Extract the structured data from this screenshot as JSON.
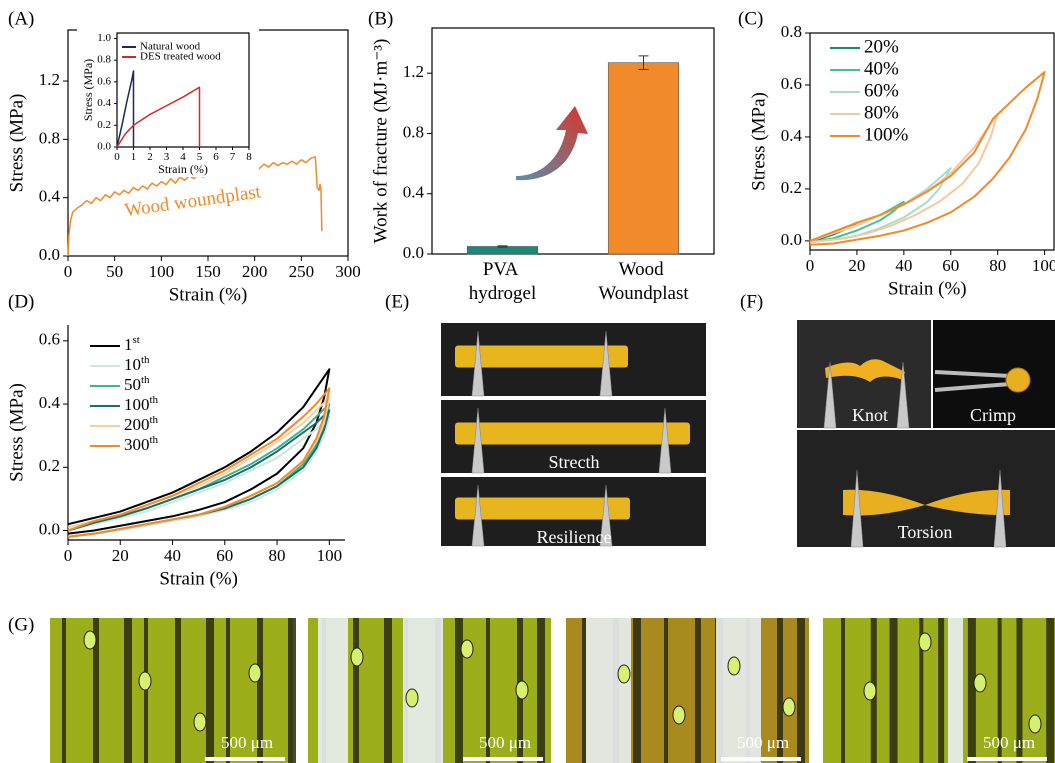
{
  "chart_data": [
    {
      "type": "line",
      "panel_label": "(A)",
      "x_label": "Strain (%)",
      "y_label": "Stress (MPa)",
      "annotation": "Wood woundplast",
      "color": "#f08a2a",
      "x": [
        0,
        1,
        3,
        5,
        10,
        15,
        20,
        25,
        30,
        35,
        40,
        45,
        50,
        55,
        60,
        65,
        70,
        75,
        80,
        85,
        90,
        95,
        100,
        105,
        110,
        115,
        120,
        125,
        130,
        135,
        140,
        145,
        150,
        155,
        160,
        165,
        170,
        175,
        180,
        185,
        190,
        195,
        200,
        205,
        210,
        215,
        220,
        225,
        230,
        235,
        240,
        245,
        250,
        255,
        260,
        265,
        267,
        269,
        270,
        271,
        272
      ],
      "values": [
        0,
        0.15,
        0.25,
        0.3,
        0.33,
        0.35,
        0.38,
        0.36,
        0.4,
        0.38,
        0.42,
        0.4,
        0.44,
        0.42,
        0.45,
        0.43,
        0.47,
        0.45,
        0.48,
        0.46,
        0.5,
        0.48,
        0.51,
        0.49,
        0.53,
        0.5,
        0.54,
        0.52,
        0.55,
        0.53,
        0.57,
        0.54,
        0.58,
        0.56,
        0.58,
        0.56,
        0.59,
        0.57,
        0.6,
        0.58,
        0.61,
        0.59,
        0.62,
        0.6,
        0.63,
        0.61,
        0.64,
        0.62,
        0.64,
        0.63,
        0.65,
        0.63,
        0.66,
        0.64,
        0.67,
        0.68,
        0.47,
        0.45,
        0.49,
        0.46,
        0.17
      ],
      "xlim": [
        0,
        300
      ],
      "ylim": [
        0,
        1.55
      ],
      "xticks": [
        0,
        50,
        100,
        150,
        200,
        250,
        300
      ],
      "yticks": [
        {
          "value": 0,
          "label": "0.0"
        },
        0.4,
        0.8,
        1.2
      ]
    },
    {
      "type": "line",
      "x_label": "Strain (%)",
      "y_label": "Stress (MPa)",
      "series": [
        {
          "name": "Natural wood",
          "color": "#1c2a5a",
          "x": [
            0,
            0.3,
            0.6,
            0.9,
            1,
            1
          ],
          "values": [
            0,
            0.2,
            0.42,
            0.62,
            0.7,
            0
          ]
        },
        {
          "name": "DES treated wood",
          "color": "#d62728",
          "x": [
            0,
            0.5,
            1,
            2,
            3,
            4,
            5,
            5
          ],
          "values": [
            0,
            0.12,
            0.2,
            0.3,
            0.38,
            0.46,
            0.55,
            0
          ]
        }
      ],
      "xlim": [
        0,
        8
      ],
      "ylim": [
        0,
        1.05
      ],
      "xticks": [
        0,
        1,
        2,
        3,
        4,
        5,
        6,
        7,
        8
      ],
      "yticks": [
        {
          "value": 0,
          "label": "0.0"
        },
        0.2,
        0.4,
        0.6,
        0.8,
        {
          "value": 1,
          "label": "1.0"
        }
      ]
    },
    {
      "type": "bar",
      "panel_label": "(B)",
      "y_label": "Work of fracture (MJ·m⁻³)",
      "categories": [
        "PVA hydrogel",
        "Wood Woundplast"
      ],
      "values": [
        0.05,
        1.27
      ],
      "errors": [
        0.004,
        0.045
      ],
      "colors": [
        "#1a8a7a",
        "#f08a2a"
      ],
      "ylim": [
        0,
        1.5
      ],
      "yticks": [
        {
          "value": 0,
          "label": "0.0"
        },
        0.4,
        0.8,
        1.2
      ]
    },
    {
      "type": "line",
      "panel_label": "(C)",
      "x_label": "Strain (%)",
      "y_label": "Stress (MPa)",
      "series": [
        {
          "name": "20%",
          "color": "#1b8a6b",
          "x": [
            0,
            5,
            10,
            15,
            20,
            15,
            10,
            5,
            0
          ],
          "values": [
            0,
            0.015,
            0.03,
            0.05,
            0.07,
            0.045,
            0.025,
            0.01,
            -0.005
          ]
        },
        {
          "name": "40%",
          "color": "#45c08f",
          "x": [
            0,
            10,
            20,
            30,
            40,
            35,
            30,
            20,
            10,
            0
          ],
          "values": [
            0,
            0.03,
            0.06,
            0.1,
            0.15,
            0.11,
            0.08,
            0.04,
            0.01,
            -0.005
          ]
        },
        {
          "name": "60%",
          "color": "#a8dccc",
          "x": [
            0,
            10,
            20,
            30,
            40,
            50,
            60,
            55,
            50,
            40,
            30,
            20,
            10,
            0
          ],
          "values": [
            0,
            0.03,
            0.06,
            0.1,
            0.14,
            0.2,
            0.28,
            0.2,
            0.15,
            0.09,
            0.05,
            0.02,
            0.005,
            -0.005
          ]
        },
        {
          "name": "80%",
          "color": "#f5c9a0",
          "x": [
            0,
            10,
            20,
            30,
            40,
            50,
            60,
            70,
            80,
            77,
            72,
            65,
            55,
            45,
            35,
            25,
            15,
            5,
            0
          ],
          "values": [
            0,
            0.03,
            0.06,
            0.1,
            0.14,
            0.19,
            0.26,
            0.36,
            0.49,
            0.4,
            0.3,
            0.22,
            0.15,
            0.1,
            0.06,
            0.03,
            0.01,
            0,
            -0.005
          ]
        },
        {
          "name": "100%",
          "color": "#f08a2a",
          "x": [
            0,
            10,
            20,
            30,
            40,
            50,
            60,
            70,
            78,
            85,
            92,
            100,
            97,
            92,
            85,
            78,
            70,
            60,
            50,
            40,
            30,
            20,
            10,
            0
          ],
          "values": [
            0,
            0.035,
            0.07,
            0.1,
            0.14,
            0.19,
            0.25,
            0.34,
            0.47,
            0.53,
            0.59,
            0.65,
            0.55,
            0.43,
            0.32,
            0.24,
            0.17,
            0.11,
            0.07,
            0.04,
            0.02,
            0.005,
            -0.01,
            -0.015
          ]
        }
      ],
      "xlim": [
        0,
        104
      ],
      "ylim": [
        -0.035,
        0.8
      ],
      "xticks": [
        0,
        20,
        40,
        60,
        80,
        100
      ],
      "yticks": [
        {
          "value": 0,
          "label": "0.0"
        },
        0.2,
        0.4,
        0.6,
        0.8
      ]
    },
    {
      "type": "line",
      "panel_label": "(D)",
      "x_label": "Strain (%)",
      "y_label": "Stress (MPa)",
      "series": [
        {
          "name": "1st",
          "color": "#000000",
          "x": [
            0,
            10,
            20,
            30,
            40,
            50,
            60,
            70,
            80,
            90,
            95,
            100,
            98,
            95,
            90,
            80,
            70,
            60,
            50,
            40,
            30,
            20,
            10,
            0
          ],
          "values": [
            0.02,
            0.04,
            0.06,
            0.09,
            0.12,
            0.16,
            0.2,
            0.25,
            0.31,
            0.39,
            0.45,
            0.51,
            0.42,
            0.34,
            0.26,
            0.18,
            0.13,
            0.09,
            0.065,
            0.045,
            0.03,
            0.015,
            0.0,
            -0.01
          ]
        },
        {
          "name": "10th",
          "color": "#c8e8e0",
          "x": [
            0,
            10,
            20,
            30,
            40,
            50,
            60,
            70,
            80,
            90,
            95,
            100,
            98,
            95,
            90,
            80,
            70,
            60,
            50,
            40,
            30,
            20,
            10,
            0
          ],
          "values": [
            0,
            0.02,
            0.04,
            0.06,
            0.09,
            0.12,
            0.15,
            0.19,
            0.23,
            0.29,
            0.32,
            0.36,
            0.3,
            0.25,
            0.19,
            0.13,
            0.09,
            0.065,
            0.045,
            0.03,
            0.015,
            0.0,
            -0.01,
            -0.02
          ]
        },
        {
          "name": "50th",
          "color": "#3db48e",
          "x": [
            0,
            10,
            20,
            30,
            40,
            50,
            60,
            70,
            80,
            90,
            95,
            100,
            98,
            95,
            90,
            80,
            70,
            60,
            50,
            40,
            30,
            20,
            10,
            0
          ],
          "values": [
            0.0,
            0.025,
            0.045,
            0.07,
            0.1,
            0.13,
            0.17,
            0.21,
            0.26,
            0.32,
            0.36,
            0.4,
            0.33,
            0.27,
            0.21,
            0.14,
            0.1,
            0.07,
            0.05,
            0.035,
            0.02,
            0.005,
            -0.01,
            -0.02
          ]
        },
        {
          "name": "100th",
          "color": "#1d6e6a",
          "x": [
            0,
            10,
            20,
            30,
            40,
            50,
            60,
            70,
            80,
            90,
            95,
            100,
            98,
            95,
            90,
            80,
            70,
            60,
            50,
            40,
            30,
            20,
            10,
            0
          ],
          "values": [
            0.0,
            0.025,
            0.045,
            0.07,
            0.1,
            0.13,
            0.16,
            0.2,
            0.25,
            0.31,
            0.34,
            0.38,
            0.32,
            0.26,
            0.2,
            0.14,
            0.1,
            0.07,
            0.05,
            0.035,
            0.02,
            0.005,
            -0.01,
            -0.02
          ]
        },
        {
          "name": "200th",
          "color": "#f5cfa6",
          "x": [
            0,
            10,
            20,
            30,
            40,
            50,
            60,
            70,
            80,
            90,
            95,
            100,
            98,
            95,
            90,
            80,
            70,
            60,
            50,
            40,
            30,
            20,
            10,
            0
          ],
          "values": [
            0.01,
            0.03,
            0.05,
            0.08,
            0.11,
            0.14,
            0.18,
            0.23,
            0.28,
            0.34,
            0.38,
            0.42,
            0.34,
            0.28,
            0.22,
            0.15,
            0.11,
            0.075,
            0.05,
            0.035,
            0.02,
            0.005,
            -0.01,
            -0.02
          ]
        },
        {
          "name": "300th",
          "color": "#f08a2a",
          "x": [
            0,
            10,
            20,
            30,
            40,
            50,
            60,
            70,
            80,
            90,
            95,
            100,
            98,
            95,
            90,
            80,
            70,
            60,
            50,
            40,
            30,
            20,
            10,
            0
          ],
          "values": [
            0.0,
            0.03,
            0.05,
            0.08,
            0.11,
            0.15,
            0.19,
            0.24,
            0.29,
            0.36,
            0.4,
            0.45,
            0.36,
            0.29,
            0.22,
            0.15,
            0.11,
            0.075,
            0.05,
            0.035,
            0.02,
            0.005,
            -0.01,
            -0.02
          ]
        }
      ],
      "xlim": [
        0,
        106
      ],
      "ylim": [
        -0.03,
        0.65
      ],
      "xticks": [
        0,
        20,
        40,
        60,
        80,
        100
      ],
      "yticks": [
        {
          "value": 0,
          "label": "0.0"
        },
        0.2,
        0.4,
        0.6
      ]
    }
  ],
  "photos": {
    "E": {
      "label": "(E)",
      "captions": [
        "Strecth",
        "Resilience"
      ]
    },
    "F": {
      "label": "(F)",
      "captions": [
        "Knot",
        "Crimp",
        "Torsion"
      ]
    },
    "G": {
      "label": "(G)",
      "scale_bars": [
        "500 μm",
        "500 μm",
        "500 μm",
        "500 μm"
      ]
    }
  }
}
